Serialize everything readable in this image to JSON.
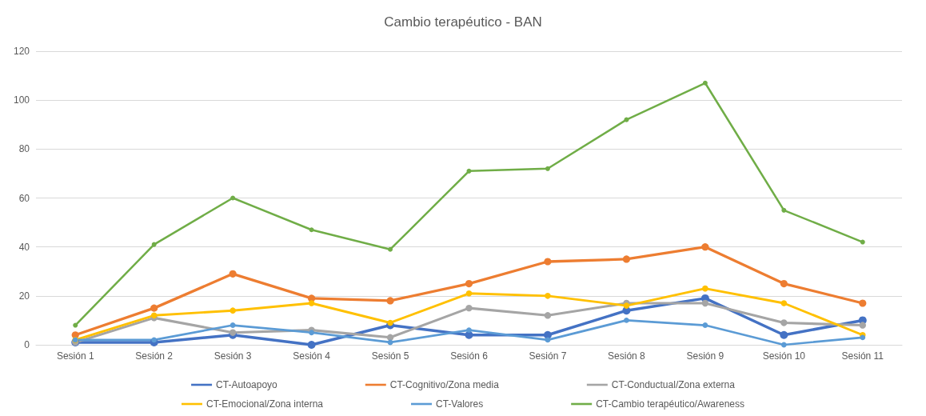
{
  "chart_data": {
    "type": "line",
    "title": "Cambio terapéutico - BAN",
    "categories": [
      "Sesión 1",
      "Sesión 2",
      "Sesión 3",
      "Sesión 4",
      "Sesión 5",
      "Sesión 6",
      "Sesión 7",
      "Sesión 8",
      "Sesión 9",
      "Sesión 10",
      "Sesión 11"
    ],
    "series": [
      {
        "name": "CT-Autoapoyo",
        "color": "#4472c4",
        "values": [
          1,
          1,
          4,
          0,
          8,
          4,
          4,
          14,
          19,
          4,
          10
        ]
      },
      {
        "name": "CT-Cognitivo/Zona media",
        "color": "#ed7d31",
        "values": [
          4,
          15,
          29,
          19,
          18,
          25,
          34,
          35,
          40,
          25,
          17
        ]
      },
      {
        "name": "CT-Conductual/Zona externa",
        "color": "#a5a5a5",
        "values": [
          1,
          11,
          5,
          6,
          3,
          15,
          12,
          17,
          17,
          9,
          8
        ]
      },
      {
        "name": "CT-Emocional/Zona interna",
        "color": "#ffc000",
        "values": [
          2,
          12,
          14,
          17,
          9,
          21,
          20,
          16,
          23,
          17,
          4
        ]
      },
      {
        "name": "CT-Valores",
        "color": "#5b9bd5",
        "values": [
          2,
          2,
          8,
          5,
          1,
          6,
          2,
          10,
          8,
          0,
          3
        ]
      },
      {
        "name": "CT-Cambio terapéutico/Awareness",
        "color": "#70ad47",
        "values": [
          8,
          41,
          60,
          47,
          39,
          71,
          72,
          92,
          107,
          55,
          42
        ]
      }
    ],
    "ylim": [
      0,
      120
    ],
    "yticks": [
      0,
      20,
      40,
      60,
      80,
      100,
      120
    ],
    "grid": "y",
    "legend": "bottom",
    "marker": "circle",
    "line_style": "solid"
  }
}
